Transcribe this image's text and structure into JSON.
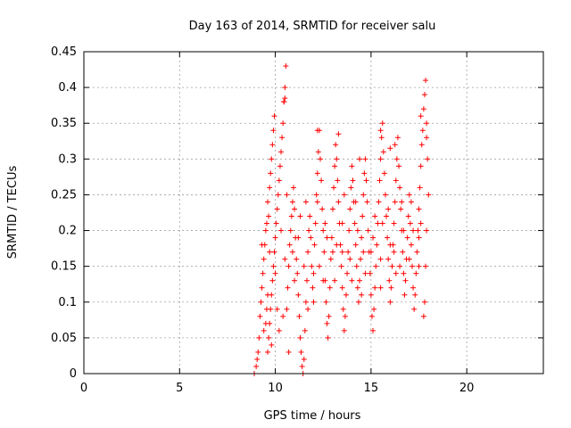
{
  "chart_data": {
    "type": "scatter",
    "title": "Day 163 of 2014, SRMTID for receiver salu",
    "xlabel": "GPS time / hours",
    "ylabel": "SRMTID / TECUs",
    "xlim": [
      0,
      24
    ],
    "ylim": [
      0,
      0.45
    ],
    "xticks": [
      0,
      5,
      10,
      15,
      20
    ],
    "xtick_labels": [
      "0",
      "5",
      "10",
      "15",
      "20"
    ],
    "yticks": [
      0,
      0.05,
      0.1,
      0.15,
      0.2,
      0.25,
      0.3,
      0.35,
      0.4,
      0.45
    ],
    "ytick_labels": [
      "0",
      "0.05",
      "0.1",
      "0.15",
      "0.2",
      "0.25",
      "0.3",
      "0.35",
      "0.4",
      "0.45"
    ],
    "grid": true,
    "marker": "+",
    "color": "#ff0000",
    "series": [
      {
        "name": "salu",
        "points": [
          [
            8.9,
            0.0
          ],
          [
            9.0,
            0.01
          ],
          [
            9.05,
            0.02
          ],
          [
            9.1,
            0.03
          ],
          [
            9.15,
            0.05
          ],
          [
            9.2,
            0.08
          ],
          [
            9.25,
            0.1
          ],
          [
            9.3,
            0.12
          ],
          [
            9.35,
            0.14
          ],
          [
            9.4,
            0.16
          ],
          [
            9.45,
            0.18
          ],
          [
            9.5,
            0.2
          ],
          [
            9.55,
            0.21
          ],
          [
            9.6,
            0.03
          ],
          [
            9.65,
            0.05
          ],
          [
            9.7,
            0.07
          ],
          [
            9.75,
            0.09
          ],
          [
            9.8,
            0.11
          ],
          [
            9.85,
            0.13
          ],
          [
            9.9,
            0.15
          ],
          [
            9.95,
            0.17
          ],
          [
            10.0,
            0.19
          ],
          [
            10.05,
            0.21
          ],
          [
            10.1,
            0.23
          ],
          [
            10.15,
            0.25
          ],
          [
            10.2,
            0.27
          ],
          [
            10.25,
            0.29
          ],
          [
            10.3,
            0.31
          ],
          [
            10.35,
            0.33
          ],
          [
            10.4,
            0.35
          ],
          [
            10.45,
            0.38
          ],
          [
            10.5,
            0.4
          ],
          [
            10.55,
            0.43
          ],
          [
            9.7,
            0.26
          ],
          [
            9.75,
            0.28
          ],
          [
            9.8,
            0.3
          ],
          [
            9.85,
            0.32
          ],
          [
            9.9,
            0.34
          ],
          [
            9.95,
            0.36
          ],
          [
            9.65,
            0.22
          ],
          [
            9.6,
            0.24
          ],
          [
            10.6,
            0.09
          ],
          [
            10.65,
            0.12
          ],
          [
            10.7,
            0.15
          ],
          [
            10.75,
            0.18
          ],
          [
            10.8,
            0.2
          ],
          [
            10.85,
            0.22
          ],
          [
            10.9,
            0.24
          ],
          [
            10.95,
            0.26
          ],
          [
            11.0,
            0.23
          ],
          [
            11.05,
            0.19
          ],
          [
            11.1,
            0.16
          ],
          [
            11.15,
            0.14
          ],
          [
            11.2,
            0.11
          ],
          [
            11.25,
            0.08
          ],
          [
            11.3,
            0.05
          ],
          [
            11.35,
            0.03
          ],
          [
            11.4,
            0.01
          ],
          [
            11.45,
            0.0
          ],
          [
            11.5,
            0.02
          ],
          [
            11.55,
            0.06
          ],
          [
            11.6,
            0.1
          ],
          [
            11.65,
            0.13
          ],
          [
            11.7,
            0.17
          ],
          [
            11.75,
            0.2
          ],
          [
            11.8,
            0.22
          ],
          [
            11.85,
            0.19
          ],
          [
            11.9,
            0.15
          ],
          [
            11.95,
            0.12
          ],
          [
            12.0,
            0.14
          ],
          [
            12.05,
            0.18
          ],
          [
            12.1,
            0.21
          ],
          [
            12.15,
            0.25
          ],
          [
            12.2,
            0.28
          ],
          [
            12.25,
            0.31
          ],
          [
            12.3,
            0.34
          ],
          [
            12.35,
            0.3
          ],
          [
            12.4,
            0.27
          ],
          [
            12.45,
            0.23
          ],
          [
            12.5,
            0.2
          ],
          [
            12.55,
            0.17
          ],
          [
            12.6,
            0.13
          ],
          [
            12.65,
            0.1
          ],
          [
            12.7,
            0.07
          ],
          [
            12.75,
            0.05
          ],
          [
            12.8,
            0.08
          ],
          [
            12.85,
            0.12
          ],
          [
            12.9,
            0.16
          ],
          [
            12.95,
            0.19
          ],
          [
            13.0,
            0.23
          ],
          [
            13.05,
            0.26
          ],
          [
            13.1,
            0.29
          ],
          [
            13.15,
            0.32
          ],
          [
            13.2,
            0.3
          ],
          [
            13.25,
            0.27
          ],
          [
            13.3,
            0.24
          ],
          [
            13.35,
            0.21
          ],
          [
            13.4,
            0.18
          ],
          [
            13.45,
            0.15
          ],
          [
            13.5,
            0.12
          ],
          [
            13.55,
            0.09
          ],
          [
            13.6,
            0.06
          ],
          [
            13.65,
            0.08
          ],
          [
            13.7,
            0.11
          ],
          [
            13.75,
            0.14
          ],
          [
            13.8,
            0.17
          ],
          [
            13.85,
            0.2
          ],
          [
            13.9,
            0.23
          ],
          [
            13.95,
            0.26
          ],
          [
            14.0,
            0.29
          ],
          [
            14.05,
            0.27
          ],
          [
            14.1,
            0.24
          ],
          [
            14.15,
            0.21
          ],
          [
            14.2,
            0.18
          ],
          [
            14.25,
            0.15
          ],
          [
            14.3,
            0.12
          ],
          [
            14.35,
            0.1
          ],
          [
            14.4,
            0.13
          ],
          [
            14.45,
            0.16
          ],
          [
            14.5,
            0.19
          ],
          [
            14.55,
            0.22
          ],
          [
            14.6,
            0.25
          ],
          [
            14.65,
            0.28
          ],
          [
            14.7,
            0.3
          ],
          [
            14.75,
            0.27
          ],
          [
            14.8,
            0.24
          ],
          [
            14.85,
            0.2
          ],
          [
            14.9,
            0.17
          ],
          [
            14.95,
            0.14
          ],
          [
            15.0,
            0.11
          ],
          [
            15.05,
            0.08
          ],
          [
            15.1,
            0.06
          ],
          [
            15.15,
            0.09
          ],
          [
            15.2,
            0.12
          ],
          [
            15.25,
            0.15
          ],
          [
            15.3,
            0.18
          ],
          [
            15.35,
            0.21
          ],
          [
            15.4,
            0.24
          ],
          [
            15.45,
            0.27
          ],
          [
            15.5,
            0.3
          ],
          [
            15.55,
            0.33
          ],
          [
            15.6,
            0.35
          ],
          [
            15.65,
            0.31
          ],
          [
            15.7,
            0.28
          ],
          [
            15.75,
            0.25
          ],
          [
            15.8,
            0.22
          ],
          [
            15.85,
            0.19
          ],
          [
            15.9,
            0.16
          ],
          [
            15.95,
            0.13
          ],
          [
            16.0,
            0.1
          ],
          [
            16.05,
            0.12
          ],
          [
            16.1,
            0.15
          ],
          [
            16.15,
            0.18
          ],
          [
            16.2,
            0.21
          ],
          [
            16.25,
            0.24
          ],
          [
            16.3,
            0.27
          ],
          [
            16.35,
            0.3
          ],
          [
            16.4,
            0.33
          ],
          [
            16.45,
            0.29
          ],
          [
            16.5,
            0.26
          ],
          [
            16.55,
            0.23
          ],
          [
            16.6,
            0.2
          ],
          [
            16.65,
            0.17
          ],
          [
            16.7,
            0.14
          ],
          [
            16.75,
            0.11
          ],
          [
            16.8,
            0.13
          ],
          [
            16.85,
            0.16
          ],
          [
            16.9,
            0.19
          ],
          [
            16.95,
            0.22
          ],
          [
            17.0,
            0.25
          ],
          [
            17.05,
            0.21
          ],
          [
            17.1,
            0.18
          ],
          [
            17.15,
            0.15
          ],
          [
            17.2,
            0.12
          ],
          [
            17.25,
            0.09
          ],
          [
            17.3,
            0.11
          ],
          [
            17.35,
            0.14
          ],
          [
            17.4,
            0.17
          ],
          [
            17.45,
            0.2
          ],
          [
            17.5,
            0.23
          ],
          [
            17.55,
            0.26
          ],
          [
            17.6,
            0.29
          ],
          [
            17.65,
            0.32
          ],
          [
            17.7,
            0.34
          ],
          [
            17.75,
            0.37
          ],
          [
            17.8,
            0.39
          ],
          [
            17.85,
            0.41
          ],
          [
            17.9,
            0.35
          ],
          [
            17.95,
            0.3
          ],
          [
            18.0,
            0.25
          ],
          [
            17.9,
            0.2
          ],
          [
            17.85,
            0.15
          ],
          [
            17.8,
            0.1
          ],
          [
            17.75,
            0.08
          ],
          [
            9.5,
            0.07
          ],
          [
            9.55,
            0.09
          ],
          [
            9.8,
            0.04
          ],
          [
            10.2,
            0.06
          ],
          [
            10.4,
            0.08
          ],
          [
            10.7,
            0.03
          ],
          [
            11.2,
            0.19
          ],
          [
            11.6,
            0.24
          ],
          [
            12.3,
            0.15
          ],
          [
            12.7,
            0.19
          ],
          [
            13.1,
            0.13
          ],
          [
            13.5,
            0.21
          ],
          [
            13.9,
            0.16
          ],
          [
            14.3,
            0.2
          ],
          [
            14.7,
            0.14
          ],
          [
            15.1,
            0.19
          ],
          [
            15.5,
            0.16
          ],
          [
            15.9,
            0.23
          ],
          [
            16.3,
            0.14
          ],
          [
            16.7,
            0.2
          ],
          [
            17.1,
            0.24
          ],
          [
            17.5,
            0.15
          ],
          [
            10.0,
            0.14
          ],
          [
            10.5,
            0.16
          ],
          [
            11.0,
            0.13
          ],
          [
            11.5,
            0.15
          ],
          [
            12.0,
            0.1
          ],
          [
            12.5,
            0.13
          ],
          [
            13.0,
            0.17
          ],
          [
            13.5,
            0.17
          ],
          [
            14.0,
            0.13
          ],
          [
            14.5,
            0.11
          ],
          [
            15.0,
            0.17
          ],
          [
            15.5,
            0.12
          ],
          [
            16.0,
            0.18
          ],
          [
            16.5,
            0.15
          ],
          [
            17.0,
            0.16
          ],
          [
            17.5,
            0.19
          ],
          [
            9.3,
            0.18
          ],
          [
            9.4,
            0.06
          ],
          [
            9.6,
            0.11
          ],
          [
            9.7,
            0.17
          ],
          [
            10.1,
            0.09
          ],
          [
            10.3,
            0.2
          ],
          [
            10.6,
            0.25
          ],
          [
            10.9,
            0.17
          ],
          [
            11.3,
            0.22
          ],
          [
            11.7,
            0.09
          ],
          [
            12.2,
            0.24
          ],
          [
            12.6,
            0.21
          ],
          [
            13.2,
            0.18
          ],
          [
            13.6,
            0.25
          ],
          [
            14.2,
            0.24
          ],
          [
            14.6,
            0.17
          ],
          [
            15.2,
            0.22
          ],
          [
            15.6,
            0.21
          ],
          [
            16.2,
            0.17
          ],
          [
            16.6,
            0.24
          ],
          [
            17.2,
            0.2
          ],
          [
            17.6,
            0.21
          ],
          [
            10.45,
            0.38
          ],
          [
            10.5,
            0.385
          ],
          [
            13.3,
            0.335
          ],
          [
            15.5,
            0.34
          ],
          [
            16.0,
            0.315
          ],
          [
            16.25,
            0.32
          ],
          [
            17.6,
            0.36
          ],
          [
            17.9,
            0.33
          ],
          [
            12.2,
            0.34
          ],
          [
            14.4,
            0.3
          ]
        ]
      }
    ]
  }
}
